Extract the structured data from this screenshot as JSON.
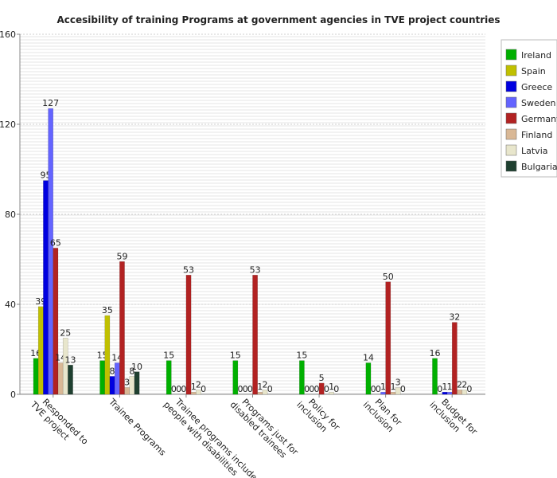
{
  "chart_data": {
    "type": "bar",
    "title": "Accesibility of training Programs at government agencies in TVE project countries",
    "categories": [
      "Responded to TVE project",
      "Trainee Programs",
      "Trainee programs include people with disabilities",
      "Programs just for disabled trainees",
      "Policy for inclusion",
      "Plan for inclusion",
      "Budget for inclusion"
    ],
    "series": [
      {
        "name": "Ireland",
        "color": "#00b000",
        "values": [
          16,
          15,
          15,
          15,
          15,
          14,
          16
        ]
      },
      {
        "name": "Spain",
        "color": "#c0c000",
        "values": [
          39,
          35,
          0,
          0,
          0,
          0,
          0
        ]
      },
      {
        "name": "Greece",
        "color": "#0000e0",
        "values": [
          95,
          8,
          0,
          0,
          0,
          0,
          1
        ]
      },
      {
        "name": "Sweden",
        "color": "#6464ff",
        "values": [
          127,
          14,
          0,
          0,
          0,
          1,
          1
        ]
      },
      {
        "name": "Germany",
        "color": "#b22222",
        "values": [
          65,
          59,
          53,
          53,
          5,
          50,
          32
        ]
      },
      {
        "name": "Finland",
        "color": "#d9b896",
        "values": [
          14,
          3,
          1,
          1,
          0,
          1,
          2
        ]
      },
      {
        "name": "Latvia",
        "color": "#e8e6cc",
        "values": [
          25,
          8,
          2,
          2,
          1,
          3,
          2
        ]
      },
      {
        "name": "Bulgaria",
        "color": "#1f4030",
        "values": [
          13,
          10,
          0,
          0,
          0,
          0,
          0
        ]
      }
    ],
    "ylim": [
      0,
      160
    ],
    "yticks": [
      0,
      40,
      80,
      120,
      160
    ],
    "grid": true,
    "legend": "right"
  }
}
